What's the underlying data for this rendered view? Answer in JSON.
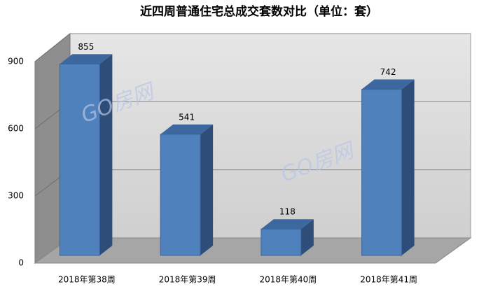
{
  "chart_data": {
    "type": "bar3d",
    "title": "近四周普通住宅总成交套数对比（单位：套）",
    "categories": [
      "2018年第38周",
      "2018年第39周",
      "2018年第40周",
      "2018年第41周"
    ],
    "values": [
      855,
      541,
      118,
      742
    ],
    "color": "#4f81bd",
    "ylim": [
      0,
      900
    ],
    "yticks": [
      0,
      300,
      600,
      900
    ],
    "grid": true,
    "watermark": "GO房网"
  }
}
